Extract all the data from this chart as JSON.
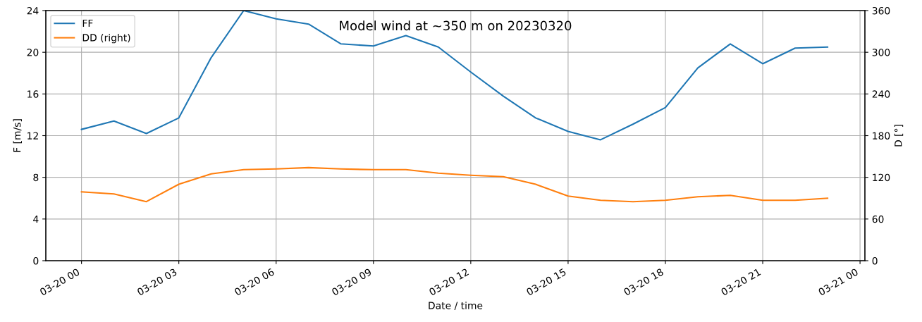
{
  "chart_data": {
    "type": "line",
    "title": "Model wind at ~350 m on 20230320",
    "xlabel": "Date / time",
    "ylabel": "F [m/s]",
    "y2label": "D [°]",
    "x": [
      "2023-03-20T00:00",
      "2023-03-20T01:00",
      "2023-03-20T02:00",
      "2023-03-20T03:00",
      "2023-03-20T04:00",
      "2023-03-20T05:00",
      "2023-03-20T06:00",
      "2023-03-20T07:00",
      "2023-03-20T08:00",
      "2023-03-20T09:00",
      "2023-03-20T10:00",
      "2023-03-20T11:00",
      "2023-03-20T12:00",
      "2023-03-20T13:00",
      "2023-03-20T14:00",
      "2023-03-20T15:00",
      "2023-03-20T16:00",
      "2023-03-20T17:00",
      "2023-03-20T18:00",
      "2023-03-20T19:00",
      "2023-03-20T20:00",
      "2023-03-20T21:00",
      "2023-03-20T22:00",
      "2023-03-20T23:00"
    ],
    "series": [
      {
        "name": "FF",
        "color": "#1f77b4",
        "values": [
          12.6,
          13.4,
          12.2,
          13.7,
          19.5,
          24,
          23.2,
          22.7,
          20.8,
          20.6,
          21.6,
          20.5,
          18.1,
          15.8,
          13.7,
          12.4,
          11.6,
          13.1,
          14.7,
          18.5,
          20.8,
          18.9,
          20.4,
          20.5
        ]
      },
      {
        "name": "DD (right)",
        "color": "#ff7f0e",
        "axis": "y2",
        "values": [
          99,
          96,
          85,
          110,
          125,
          131,
          132,
          134,
          132,
          131,
          131,
          126,
          123,
          121,
          110,
          93,
          87,
          85,
          87,
          92,
          94,
          87,
          87,
          90
        ]
      }
    ],
    "xlim": [
      "2023-03-19T22:54",
      "2023-03-21T00:09"
    ],
    "xticks": [
      {
        "value": "2023-03-20T00:00",
        "label": "03-20 00"
      },
      {
        "value": "2023-03-20T03:00",
        "label": "03-20 03"
      },
      {
        "value": "2023-03-20T06:00",
        "label": "03-20 06"
      },
      {
        "value": "2023-03-20T09:00",
        "label": "03-20 09"
      },
      {
        "value": "2023-03-20T12:00",
        "label": "03-20 12"
      },
      {
        "value": "2023-03-20T15:00",
        "label": "03-20 15"
      },
      {
        "value": "2023-03-20T18:00",
        "label": "03-20 18"
      },
      {
        "value": "2023-03-20T21:00",
        "label": "03-20 21"
      },
      {
        "value": "2023-03-21T00:00",
        "label": "03-21 00"
      }
    ],
    "ylim": [
      0,
      24
    ],
    "yticks": [
      0,
      4,
      8,
      12,
      16,
      20,
      24
    ],
    "y2lim": [
      0,
      360
    ],
    "y2ticks": [
      0,
      60,
      120,
      180,
      240,
      300,
      360
    ],
    "grid": true,
    "legend": "top left",
    "marker": "none",
    "line_style": "solid"
  }
}
